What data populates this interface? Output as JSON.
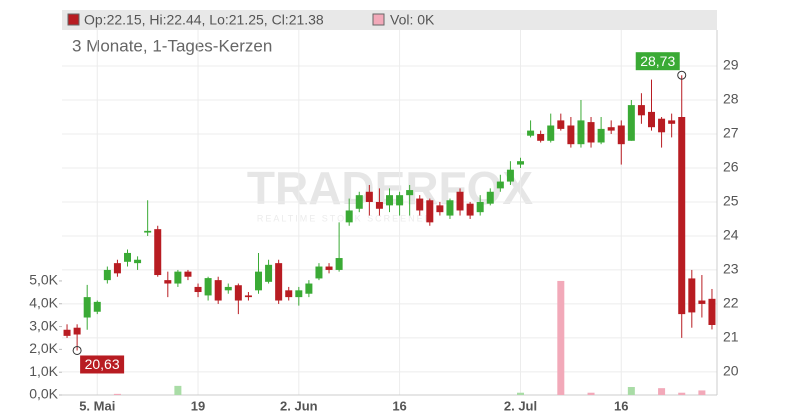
{
  "chart_data": {
    "type": "candlestick",
    "legend": {
      "ohlc": "Op:22.15, Hi:22.44, Lo:21.25, Cl:21.38",
      "volume": "Vol: 0K"
    },
    "subtitle": "3 Monate, 1-Tages-Kerzen",
    "watermark": "TRADERFOX",
    "watermark_sub": "REALTIME STOCK SCREENER",
    "high_label": "28,73",
    "low_label": "20,63",
    "categories": [
      null,
      null,
      null,
      "5. Mai",
      null,
      null,
      null,
      null,
      null,
      null,
      null,
      null,
      null,
      "19",
      null,
      null,
      null,
      null,
      null,
      null,
      null,
      null,
      null,
      "2. Jun",
      null,
      null,
      null,
      null,
      null,
      null,
      null,
      null,
      null,
      "16",
      null,
      null,
      null,
      null,
      null,
      null,
      null,
      null,
      null,
      null,
      null,
      "2. Jul",
      null,
      null,
      null,
      null,
      null,
      null,
      null,
      null,
      null,
      "16",
      null,
      null,
      null,
      null,
      null,
      null,
      null,
      null,
      null
    ],
    "open": [
      21.24,
      21.3,
      21.6,
      21.77,
      22.7,
      23.2,
      23.24,
      23.2,
      24.1,
      24.2,
      22.7,
      22.6,
      22.95,
      22.5,
      22.25,
      22.7,
      22.4,
      22.55,
      22.25,
      22.4,
      22.65,
      23.2,
      22.4,
      22.2,
      22.3,
      22.75,
      23.1,
      23.0,
      24.4,
      24.8,
      25.3,
      25.0,
      24.9,
      24.9,
      25.2,
      25.1,
      25.05,
      24.9,
      24.6,
      25.3,
      24.95,
      24.7,
      24.95,
      25.4,
      25.6,
      26.1,
      26.95,
      27.0,
      26.8,
      27.4,
      27.25,
      26.7,
      27.35,
      26.75,
      27.2,
      27.25,
      26.8,
      27.85,
      27.65,
      27.45,
      27.4,
      27.5,
      22.75,
      22.1,
      22.15
    ],
    "high": [
      21.4,
      21.4,
      22.56,
      22.1,
      23.1,
      23.3,
      23.6,
      23.4,
      25.05,
      24.3,
      22.95,
      23.0,
      23.0,
      22.6,
      22.8,
      22.8,
      22.6,
      22.6,
      22.35,
      23.5,
      23.3,
      23.3,
      22.5,
      22.5,
      22.7,
      23.2,
      23.2,
      24.4,
      25.1,
      25.3,
      25.5,
      25.4,
      25.4,
      25.3,
      25.5,
      25.2,
      25.1,
      25.0,
      25.1,
      25.4,
      25.0,
      25.2,
      25.4,
      25.8,
      26.2,
      26.3,
      27.4,
      27.1,
      27.6,
      27.6,
      27.5,
      28.0,
      27.5,
      27.5,
      27.4,
      27.4,
      28.0,
      28.2,
      28.6,
      27.5,
      27.6,
      28.73,
      23.0,
      22.85,
      22.44
    ],
    "low": [
      21.0,
      20.63,
      21.24,
      21.7,
      22.6,
      22.8,
      23.1,
      23.0,
      24.0,
      22.8,
      22.2,
      22.5,
      22.7,
      22.2,
      22.1,
      22.0,
      22.3,
      21.7,
      22.1,
      22.3,
      22.6,
      22.0,
      22.1,
      21.95,
      22.2,
      22.7,
      22.9,
      22.95,
      24.3,
      24.7,
      24.6,
      24.6,
      24.7,
      24.6,
      24.6,
      24.6,
      24.3,
      24.6,
      24.5,
      24.6,
      24.5,
      24.6,
      24.9,
      25.3,
      25.5,
      26.0,
      26.9,
      26.75,
      26.75,
      27.1,
      26.6,
      26.6,
      26.6,
      26.7,
      27.0,
      26.1,
      26.8,
      27.3,
      27.1,
      26.6,
      26.9,
      21.0,
      21.3,
      21.6,
      21.25
    ],
    "close": [
      21.06,
      21.1,
      22.2,
      22.06,
      23.0,
      22.9,
      23.5,
      23.3,
      24.15,
      22.85,
      22.6,
      22.95,
      22.8,
      22.35,
      22.76,
      22.1,
      22.5,
      22.1,
      22.2,
      22.95,
      23.15,
      22.1,
      22.2,
      22.4,
      22.6,
      23.1,
      23.0,
      23.35,
      24.75,
      25.2,
      25.0,
      24.8,
      25.2,
      25.2,
      25.35,
      24.75,
      24.4,
      24.7,
      25.05,
      24.75,
      24.6,
      25.0,
      25.3,
      25.6,
      25.95,
      26.2,
      27.1,
      26.8,
      27.25,
      27.15,
      26.7,
      27.4,
      26.75,
      27.15,
      27.1,
      26.7,
      27.85,
      27.55,
      27.2,
      27.05,
      27.3,
      21.7,
      21.75,
      22.0,
      21.38
    ],
    "volume": [
      0,
      0,
      0,
      0,
      0,
      50,
      0,
      0,
      0,
      0,
      0,
      400,
      0,
      0,
      0,
      0,
      0,
      0,
      0,
      0,
      0,
      0,
      0,
      0,
      0,
      0,
      0,
      0,
      0,
      0,
      0,
      0,
      0,
      0,
      0,
      0,
      0,
      0,
      0,
      0,
      0,
      0,
      0,
      0,
      0,
      100,
      0,
      0,
      0,
      5000,
      0,
      0,
      100,
      0,
      0,
      0,
      350,
      0,
      0,
      300,
      0,
      100,
      0,
      200,
      0
    ],
    "up_color": "#3aaa35",
    "down_color": "#b81c22",
    "volume_up_color": "#a9dca6",
    "volume_down_color": "#f2a9b9",
    "ylim": [
      19.32,
      30.06
    ],
    "yticks": [
      20,
      21,
      22,
      23,
      24,
      25,
      26,
      27,
      28,
      29
    ],
    "y2lim": [
      0,
      16000
    ],
    "y2ticks": [
      {
        "value": 0,
        "label": "0,0K"
      },
      {
        "value": 1000,
        "label": "1,0K"
      },
      {
        "value": 2000,
        "label": "2,0K"
      },
      {
        "value": 3000,
        "label": "3,0K"
      },
      {
        "value": 4000,
        "label": "4,0K"
      },
      {
        "value": 5000,
        "label": "5,0K"
      }
    ],
    "grid": true
  }
}
